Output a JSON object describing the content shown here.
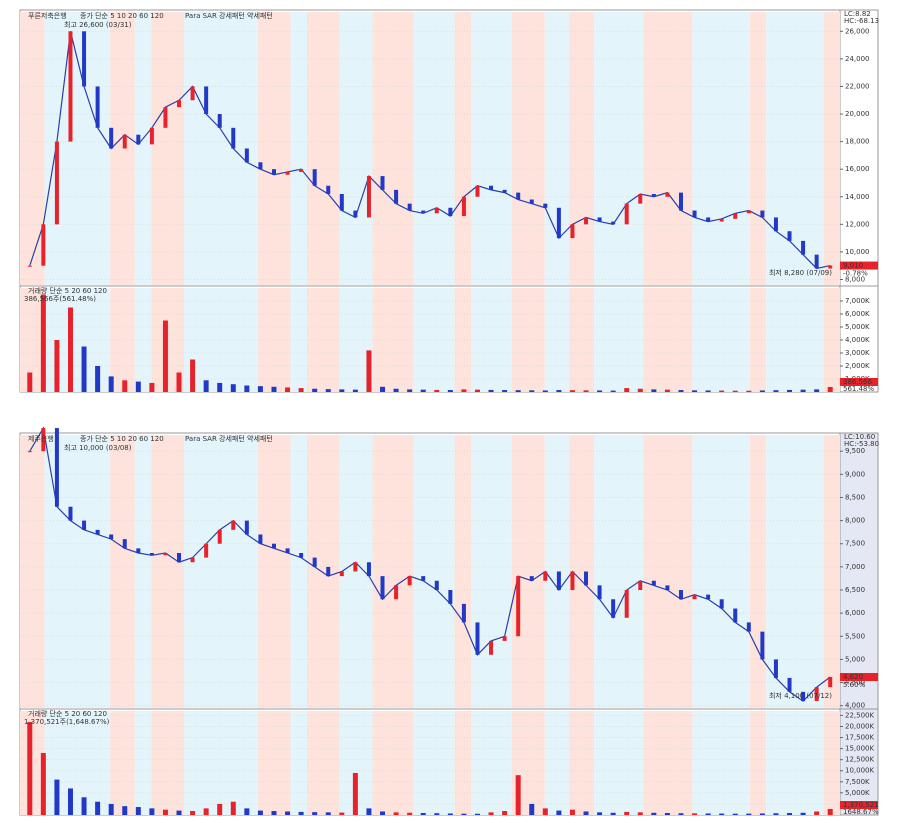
{
  "chart_data": [
    {
      "type": "line",
      "name": "푸른저축은행",
      "legend": "종가 단순 5 10 20 60 120",
      "sar_legend": "Para SAR 강세패턴 약세패턴",
      "high_label": "최고 26,600 (03/31)",
      "low_label": "최저 8,280 (07/09)",
      "lc": "LC:8.82",
      "hc": "HC:-68.13",
      "last_label": "9,010",
      "change_label": "-0.78%",
      "ylim": [
        7600,
        27400
      ],
      "yticks": [
        {
          "value": 8000,
          "label": "8,000"
        },
        {
          "value": 10000,
          "label": "10,000"
        },
        {
          "value": 12000,
          "label": "12,000"
        },
        {
          "value": 14000,
          "label": "14,000"
        },
        {
          "value": 16000,
          "label": "16,000"
        },
        {
          "value": 18000,
          "label": "18,000"
        },
        {
          "value": 20000,
          "label": "20,000"
        },
        {
          "value": 22000,
          "label": "22,000"
        },
        {
          "value": 24000,
          "label": "24,000"
        },
        {
          "value": 26000,
          "label": "26,000"
        }
      ],
      "series": [
        {
          "name": "종가",
          "color": "#2a3fa8",
          "values": [
            9000,
            12000,
            18000,
            26000,
            22000,
            19000,
            17500,
            18500,
            17800,
            19000,
            20500,
            21000,
            22000,
            20000,
            19000,
            17500,
            16500,
            16000,
            15600,
            15800,
            16000,
            14800,
            14200,
            13000,
            12500,
            15500,
            14500,
            13500,
            13000,
            12800,
            13200,
            12600,
            14000,
            14800,
            14500,
            14300,
            13800,
            13500,
            13200,
            11000,
            12000,
            12500,
            12200,
            12000,
            13500,
            14200,
            14000,
            14300,
            13000,
            12500,
            12200,
            12400,
            12800,
            13000,
            12500,
            11500,
            10800,
            9800,
            8800,
            9010
          ]
        }
      ],
      "volume": {
        "label": "거래량 단순 5 20 60 120",
        "summary": "386,566주(561.48%)",
        "last_label": "386,566",
        "pct_label": "561.48%",
        "ylim": [
          0,
          8000000
        ],
        "yticks": [
          {
            "value": 1000000,
            "label": "1,000K"
          },
          {
            "value": 2000000,
            "label": "2,000K"
          },
          {
            "value": 3000000,
            "label": "3,000K"
          },
          {
            "value": 4000000,
            "label": "4,000K"
          },
          {
            "value": 5000000,
            "label": "5,000K"
          },
          {
            "value": 6000000,
            "label": "6,000K"
          },
          {
            "value": 7000000,
            "label": "7,000K"
          }
        ],
        "values": [
          1500000,
          7500000,
          4000000,
          6500000,
          3500000,
          2000000,
          1200000,
          900000,
          800000,
          700000,
          5500000,
          1500000,
          2500000,
          900000,
          700000,
          600000,
          500000,
          450000,
          400000,
          350000,
          300000,
          250000,
          220000,
          200000,
          180000,
          3200000,
          400000,
          250000,
          200000,
          180000,
          160000,
          150000,
          200000,
          180000,
          160000,
          150000,
          140000,
          130000,
          120000,
          150000,
          140000,
          130000,
          120000,
          110000,
          300000,
          250000,
          200000,
          180000,
          150000,
          130000,
          120000,
          110000,
          100000,
          100000,
          120000,
          140000,
          160000,
          180000,
          200000,
          386566
        ]
      }
    },
    {
      "type": "line",
      "name": "제주은행",
      "legend": "종가 단순 5 10 20 60 120",
      "sar_legend": "Para SAR 강세패턴 약세패턴",
      "high_label": "최고 10,000 (03/08)",
      "low_label": "최저 4,100 (07/12)",
      "lc": "LC:10.60",
      "hc": "HC:-53.80",
      "last_label": "4,620",
      "change_label": "5.60%",
      "ylim": [
        3950,
        9850
      ],
      "yticks": [
        {
          "value": 4000,
          "label": "4,000"
        },
        {
          "value": 4500,
          "label": "4,500"
        },
        {
          "value": 5000,
          "label": "5,000"
        },
        {
          "value": 5500,
          "label": "5,500"
        },
        {
          "value": 6000,
          "label": "6,000"
        },
        {
          "value": 6500,
          "label": "6,500"
        },
        {
          "value": 7000,
          "label": "7,000"
        },
        {
          "value": 7500,
          "label": "7,500"
        },
        {
          "value": 8000,
          "label": "8,000"
        },
        {
          "value": 8500,
          "label": "8,500"
        },
        {
          "value": 9000,
          "label": "9,000"
        },
        {
          "value": 9500,
          "label": "9,500"
        }
      ],
      "series": [
        {
          "name": "종가",
          "color": "#2a3fa8",
          "values": [
            9500,
            10000,
            8300,
            8000,
            7800,
            7700,
            7600,
            7400,
            7300,
            7250,
            7300,
            7100,
            7200,
            7500,
            7800,
            8000,
            7700,
            7500,
            7400,
            7300,
            7200,
            7000,
            6800,
            6900,
            7100,
            6800,
            6300,
            6600,
            6800,
            6700,
            6500,
            6200,
            5800,
            5100,
            5400,
            5500,
            6800,
            6700,
            6900,
            6500,
            6900,
            6600,
            6300,
            5900,
            6500,
            6700,
            6600,
            6500,
            6300,
            6400,
            6300,
            6100,
            5800,
            5600,
            5000,
            4600,
            4300,
            4100,
            4400,
            4620
          ]
        }
      ],
      "volume": {
        "label": "거래량 단순 5 20 60 120",
        "summary": "1,370,521주(1,648.67%)",
        "last_label": "1,370,521",
        "pct_label": "1648.67%",
        "ylim": [
          0,
          23500000
        ],
        "yticks": [
          {
            "value": 2500000,
            "label": "2,500K"
          },
          {
            "value": 5000000,
            "label": "5,000K"
          },
          {
            "value": 7500000,
            "label": "7,500K"
          },
          {
            "value": 10000000,
            "label": "10,000K"
          },
          {
            "value": 12500000,
            "label": "12,500K"
          },
          {
            "value": 15000000,
            "label": "15,000K"
          },
          {
            "value": 17500000,
            "label": "17,500K"
          },
          {
            "value": 20000000,
            "label": "20,000K"
          },
          {
            "value": 22500000,
            "label": "22,500K"
          }
        ],
        "values": [
          21000000,
          14000000,
          8000000,
          6000000,
          4000000,
          3000000,
          2500000,
          2000000,
          1800000,
          1500000,
          1200000,
          1000000,
          900000,
          1500000,
          2500000,
          3000000,
          1500000,
          1000000,
          900000,
          800000,
          700000,
          650000,
          600000,
          550000,
          9500000,
          1500000,
          800000,
          600000,
          500000,
          450000,
          400000,
          350000,
          300000,
          280000,
          600000,
          900000,
          9000000,
          2500000,
          1500000,
          1000000,
          1200000,
          800000,
          600000,
          500000,
          700000,
          600000,
          500000,
          450000,
          400000,
          380000,
          350000,
          330000,
          300000,
          320000,
          350000,
          400000,
          450000,
          500000,
          800000,
          1370521
        ]
      }
    }
  ]
}
